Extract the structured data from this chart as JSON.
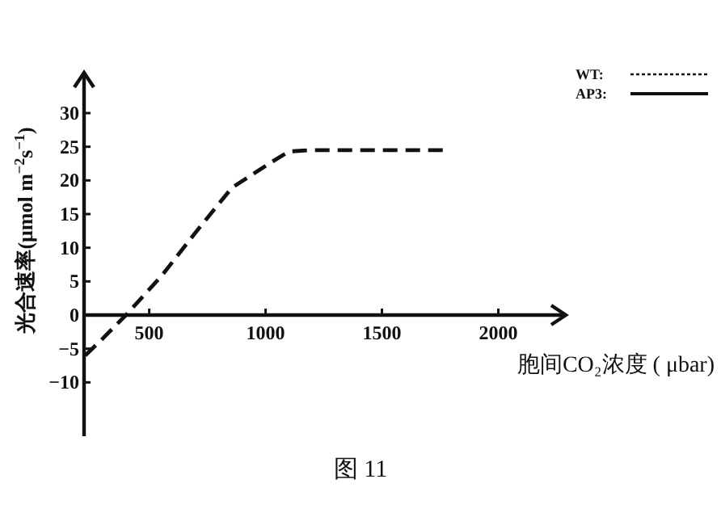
{
  "chart_data": {
    "type": "line",
    "xlabel": "胞间CO₂浓度 ( μbar)",
    "ylabel": "光合速率(μmol m$^{−2}$s$^{−1}$)",
    "annotations": [
      "图 11"
    ],
    "x": [
      225,
      300,
      400,
      555,
      700,
      855,
      1020,
      1100,
      1200,
      1400,
      1600,
      1770
    ],
    "series": [
      {
        "name": "WT:",
        "color": "#111111",
        "line_style": "dashed",
        "values": [
          -6,
          -3.5,
          0,
          5.9,
          12.3,
          18.9,
          22.6,
          24.3,
          24.5,
          24.5,
          24.5,
          24.5
        ]
      },
      {
        "name": "AP3:",
        "color": "#111111",
        "line_style": "solid",
        "values": [
          null,
          null,
          null,
          null,
          null,
          null,
          null,
          null,
          null,
          null,
          null,
          null
        ]
      }
    ],
    "xlim": [
      220,
      2290
    ],
    "ylim": [
      -18,
      36
    ],
    "xticks": [
      500,
      1000,
      1500,
      2000
    ],
    "yticks": [
      -10,
      -5,
      0,
      5,
      10,
      15,
      20,
      25,
      30
    ],
    "legend": "top right",
    "grid": false,
    "marker": "none"
  }
}
